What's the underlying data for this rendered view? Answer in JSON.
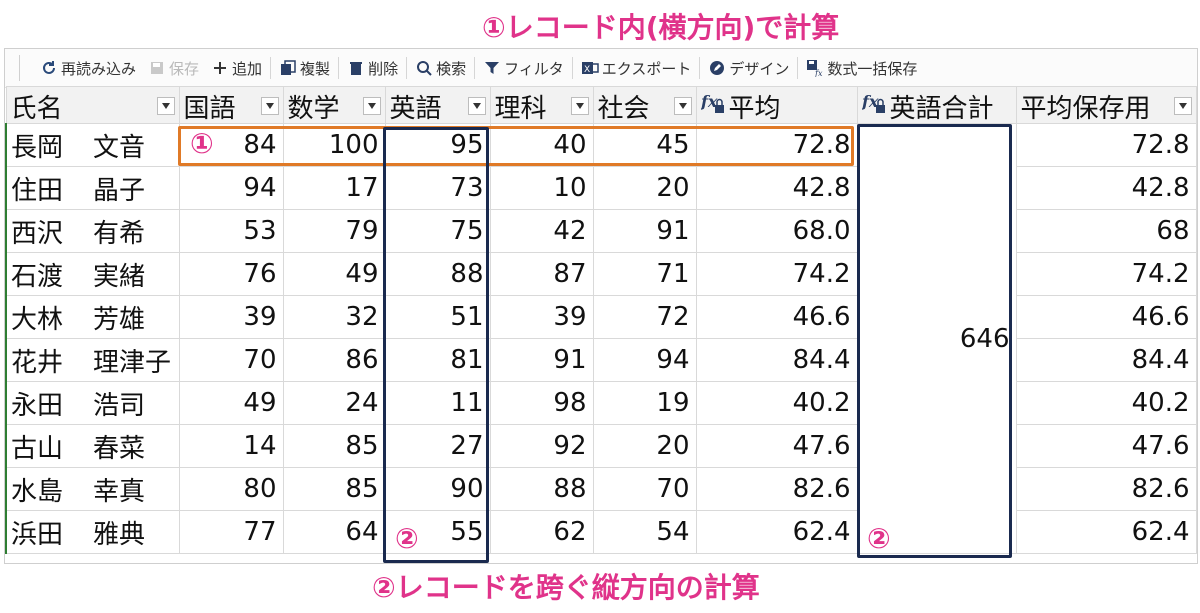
{
  "annotations": {
    "top": "①レコード内(横方向)で計算",
    "bottom": "②レコードを跨ぐ縦方向の計算",
    "marker1": "①",
    "marker2": "②",
    "colors": {
      "pink": "#e0338a",
      "orange": "#e07a27",
      "navy": "#1a2a4f"
    }
  },
  "toolbar": {
    "reload": "再読み込み",
    "save": "保存",
    "add": "追加",
    "duplicate": "複製",
    "delete": "削除",
    "search": "検索",
    "filter": "フィルタ",
    "export": "エクスポート",
    "design": "デザイン",
    "formula_save": "数式一括保存"
  },
  "columns": [
    {
      "label": "氏名",
      "formula": false,
      "dropdown": true
    },
    {
      "label": "国語",
      "formula": false,
      "dropdown": true
    },
    {
      "label": "数学",
      "formula": false,
      "dropdown": true
    },
    {
      "label": "英語",
      "formula": false,
      "dropdown": true
    },
    {
      "label": "理科",
      "formula": false,
      "dropdown": true
    },
    {
      "label": "社会",
      "formula": false,
      "dropdown": true
    },
    {
      "label": "平均",
      "formula": true,
      "dropdown": false
    },
    {
      "label": "英語合計",
      "formula": true,
      "dropdown": false
    },
    {
      "label": "平均保存用",
      "formula": false,
      "dropdown": true
    }
  ],
  "english_total": "646",
  "rows": [
    {
      "last": "長岡",
      "first": "文音",
      "kokugo": "84",
      "sugaku": "100",
      "eigo": "95",
      "rika": "40",
      "shakai": "45",
      "avg": "72.8",
      "avg_saved": "72.8"
    },
    {
      "last": "住田",
      "first": "晶子",
      "kokugo": "94",
      "sugaku": "17",
      "eigo": "73",
      "rika": "10",
      "shakai": "20",
      "avg": "42.8",
      "avg_saved": "42.8"
    },
    {
      "last": "西沢",
      "first": "有希",
      "kokugo": "53",
      "sugaku": "79",
      "eigo": "75",
      "rika": "42",
      "shakai": "91",
      "avg": "68.0",
      "avg_saved": "68"
    },
    {
      "last": "石渡",
      "first": "実緒",
      "kokugo": "76",
      "sugaku": "49",
      "eigo": "88",
      "rika": "87",
      "shakai": "71",
      "avg": "74.2",
      "avg_saved": "74.2"
    },
    {
      "last": "大林",
      "first": "芳雄",
      "kokugo": "39",
      "sugaku": "32",
      "eigo": "51",
      "rika": "39",
      "shakai": "72",
      "avg": "46.6",
      "avg_saved": "46.6"
    },
    {
      "last": "花井",
      "first": "理津子",
      "kokugo": "70",
      "sugaku": "86",
      "eigo": "81",
      "rika": "91",
      "shakai": "94",
      "avg": "84.4",
      "avg_saved": "84.4"
    },
    {
      "last": "永田",
      "first": "浩司",
      "kokugo": "49",
      "sugaku": "24",
      "eigo": "11",
      "rika": "98",
      "shakai": "19",
      "avg": "40.2",
      "avg_saved": "40.2"
    },
    {
      "last": "古山",
      "first": "春菜",
      "kokugo": "14",
      "sugaku": "85",
      "eigo": "27",
      "rika": "92",
      "shakai": "20",
      "avg": "47.6",
      "avg_saved": "47.6"
    },
    {
      "last": "水島",
      "first": "幸真",
      "kokugo": "80",
      "sugaku": "85",
      "eigo": "90",
      "rika": "88",
      "shakai": "70",
      "avg": "82.6",
      "avg_saved": "82.6"
    },
    {
      "last": "浜田",
      "first": "雅典",
      "kokugo": "77",
      "sugaku": "64",
      "eigo": "55",
      "rika": "62",
      "shakai": "54",
      "avg": "62.4",
      "avg_saved": "62.4"
    }
  ]
}
